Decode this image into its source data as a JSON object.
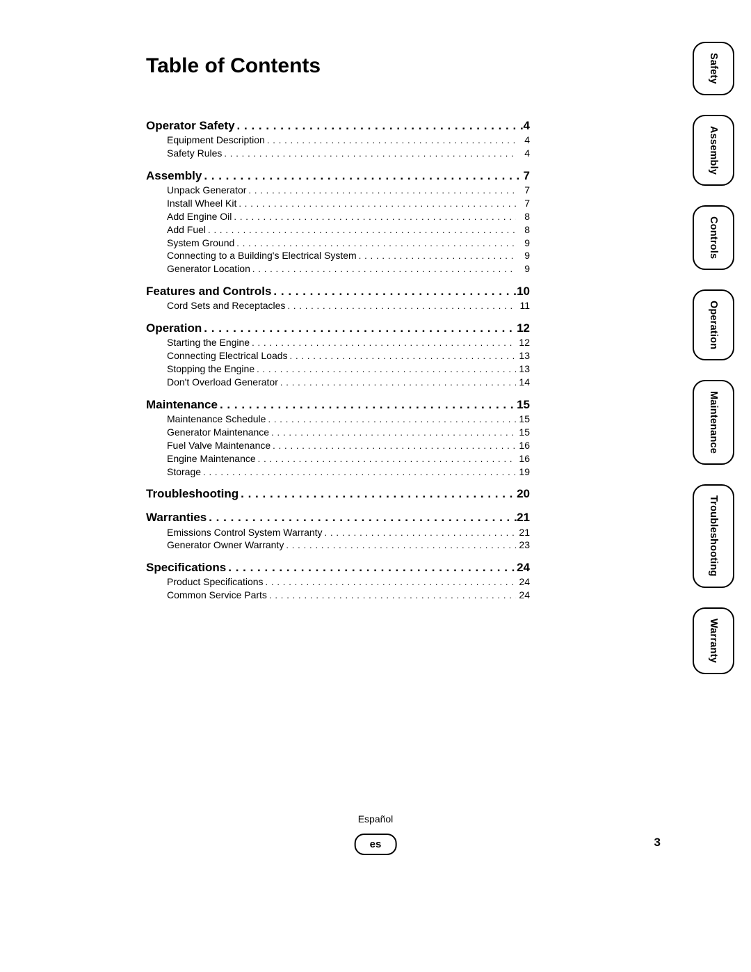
{
  "title": "Table of Contents",
  "page_number": "3",
  "lang_label": "Español",
  "lang_badge": "es",
  "colors": {
    "text": "#000000",
    "background": "#ffffff",
    "border": "#000000"
  },
  "typography": {
    "title_size_pt": 22,
    "section_size_pt": 13,
    "sub_size_pt": 11,
    "tab_size_pt": 11,
    "bold": 700
  },
  "tabs": [
    {
      "label": "Safety"
    },
    {
      "label": "Assembly"
    },
    {
      "label": "Controls"
    },
    {
      "label": "Operation"
    },
    {
      "label": "Maintenance"
    },
    {
      "label": "Troubleshooting"
    },
    {
      "label": "Warranty"
    }
  ],
  "toc": [
    {
      "title": "Operator Safety",
      "page": "4",
      "items": [
        {
          "title": "Equipment Description",
          "page": "4"
        },
        {
          "title": "Safety Rules",
          "page": "4"
        }
      ]
    },
    {
      "title": "Assembly",
      "page": "7",
      "items": [
        {
          "title": "Unpack Generator",
          "page": "7"
        },
        {
          "title": "Install Wheel Kit",
          "page": "7"
        },
        {
          "title": "Add Engine Oil",
          "page": "8"
        },
        {
          "title": "Add Fuel",
          "page": "8"
        },
        {
          "title": "System Ground",
          "page": "9"
        },
        {
          "title": "Connecting to a Building's Electrical System",
          "page": "9"
        },
        {
          "title": "Generator Location",
          "page": "9"
        }
      ]
    },
    {
      "title": "Features and Controls",
      "page": "10",
      "items": [
        {
          "title": "Cord Sets and Receptacles",
          "page": "11"
        }
      ]
    },
    {
      "title": "Operation",
      "page": "12",
      "items": [
        {
          "title": "Starting the Engine",
          "page": "12"
        },
        {
          "title": "Connecting Electrical Loads",
          "page": "13"
        },
        {
          "title": "Stopping the Engine",
          "page": "13"
        },
        {
          "title": "Don't Overload Generator",
          "page": "14"
        }
      ]
    },
    {
      "title": "Maintenance",
      "page": "15",
      "items": [
        {
          "title": "Maintenance Schedule",
          "page": "15"
        },
        {
          "title": "Generator Maintenance",
          "page": "15"
        },
        {
          "title": "Fuel Valve Maintenance",
          "page": "16"
        },
        {
          "title": "Engine Maintenance",
          "page": "16"
        },
        {
          "title": "Storage",
          "page": "19"
        }
      ]
    },
    {
      "title": "Troubleshooting",
      "page": "20",
      "items": []
    },
    {
      "title": "Warranties",
      "page": "21",
      "items": [
        {
          "title": "Emissions Control System Warranty",
          "page": "21"
        },
        {
          "title": "Generator Owner Warranty",
          "page": "23"
        }
      ]
    },
    {
      "title": "Specifications",
      "page": "24",
      "items": [
        {
          "title": "Product Specifications",
          "page": "24"
        },
        {
          "title": "Common Service Parts",
          "page": "24"
        }
      ]
    }
  ]
}
